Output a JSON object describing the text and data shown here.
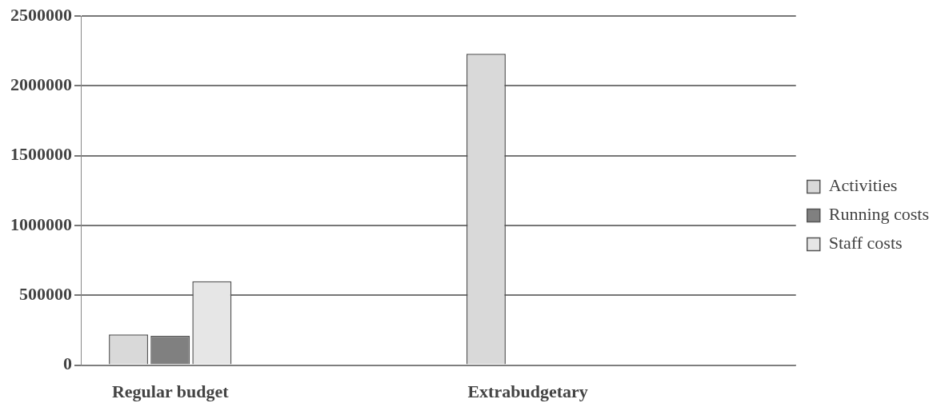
{
  "chart_data": {
    "type": "bar",
    "categories": [
      "Regular budget",
      null,
      "Extrabudgetary",
      null
    ],
    "series": [
      {
        "name": "Activities",
        "color": "#d9d9d9",
        "values": [
          220000,
          null,
          2230000,
          null
        ]
      },
      {
        "name": "Running costs",
        "color": "#808080",
        "values": [
          210000,
          null,
          null,
          null
        ]
      },
      {
        "name": "Staff costs",
        "color": "#e6e6e6",
        "values": [
          600000,
          null,
          null,
          null
        ]
      }
    ],
    "ylim": [
      0,
      2500000
    ],
    "yticks": [
      0,
      500000,
      1000000,
      1500000,
      2000000,
      2500000
    ],
    "grid": "y",
    "legend": "right"
  }
}
